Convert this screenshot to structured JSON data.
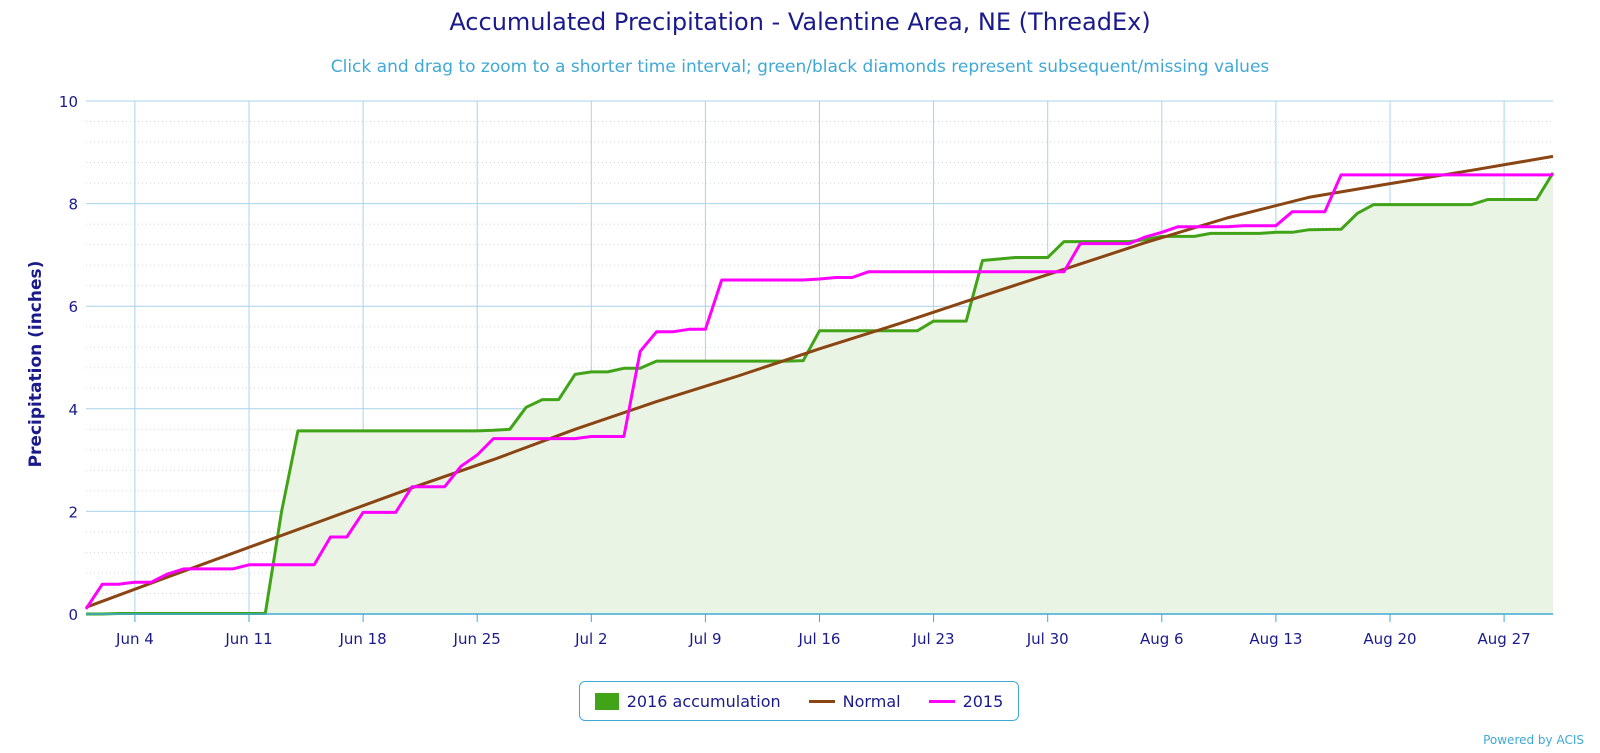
{
  "chart_data": {
    "type": "line",
    "title": "Accumulated Precipitation - Valentine Area, NE (ThreadEx)",
    "subtitle": "Click and drag to zoom to a shorter time interval; green/black diamonds represent subsequent/missing values",
    "ylabel": "Precipitation (inches)",
    "xlabel": "",
    "ylim": [
      0,
      10
    ],
    "y_ticks": [
      0,
      2,
      4,
      6,
      8,
      10
    ],
    "x_range_days": [
      0,
      90
    ],
    "x_ticks": [
      {
        "day": 3,
        "label": "Jun 4"
      },
      {
        "day": 10,
        "label": "Jun 11"
      },
      {
        "day": 17,
        "label": "Jun 18"
      },
      {
        "day": 24,
        "label": "Jun 25"
      },
      {
        "day": 31,
        "label": "Jul 2"
      },
      {
        "day": 38,
        "label": "Jul 9"
      },
      {
        "day": 45,
        "label": "Jul 16"
      },
      {
        "day": 52,
        "label": "Jul 23"
      },
      {
        "day": 59,
        "label": "Jul 30"
      },
      {
        "day": 66,
        "label": "Aug 6"
      },
      {
        "day": 73,
        "label": "Aug 13"
      },
      {
        "day": 80,
        "label": "Aug 20"
      },
      {
        "day": 87,
        "label": "Aug 27"
      }
    ],
    "grid": true,
    "legend_position": "bottom-center",
    "series": [
      {
        "name": "2016 accumulation",
        "kind": "area",
        "color": "#41a317",
        "fill": "#eaf4e4",
        "points": [
          [
            0,
            0
          ],
          [
            1,
            0
          ],
          [
            2,
            0.01
          ],
          [
            10,
            0.01
          ],
          [
            11,
            0.01
          ],
          [
            12,
            2.0
          ],
          [
            13,
            3.57
          ],
          [
            24,
            3.57
          ],
          [
            25,
            3.58
          ],
          [
            26,
            3.6
          ],
          [
            27,
            4.03
          ],
          [
            28,
            4.18
          ],
          [
            29,
            4.18
          ],
          [
            30,
            4.67
          ],
          [
            31,
            4.72
          ],
          [
            32,
            4.72
          ],
          [
            33,
            4.79
          ],
          [
            34,
            4.79
          ],
          [
            35,
            4.93
          ],
          [
            43,
            4.93
          ],
          [
            44,
            4.94
          ],
          [
            45,
            5.52
          ],
          [
            50,
            5.52
          ],
          [
            51,
            5.52
          ],
          [
            52,
            5.71
          ],
          [
            54,
            5.71
          ],
          [
            55,
            6.89
          ],
          [
            56,
            6.92
          ],
          [
            57,
            6.95
          ],
          [
            59,
            6.95
          ],
          [
            60,
            7.26
          ],
          [
            64,
            7.26
          ],
          [
            65,
            7.3
          ],
          [
            66,
            7.36
          ],
          [
            68,
            7.36
          ],
          [
            69,
            7.42
          ],
          [
            72,
            7.42
          ],
          [
            73,
            7.44
          ],
          [
            74,
            7.44
          ],
          [
            75,
            7.49
          ],
          [
            77,
            7.5
          ],
          [
            78,
            7.81
          ],
          [
            79,
            7.98
          ],
          [
            85,
            7.98
          ],
          [
            86,
            8.08
          ],
          [
            89,
            8.08
          ],
          [
            90,
            8.6
          ]
        ]
      },
      {
        "name": "Normal",
        "kind": "line",
        "color": "#8b4513",
        "points": [
          [
            0,
            0.13
          ],
          [
            5,
            0.72
          ],
          [
            10,
            1.3
          ],
          [
            15,
            1.88
          ],
          [
            20,
            2.46
          ],
          [
            25,
            3.01
          ],
          [
            30,
            3.6
          ],
          [
            35,
            4.14
          ],
          [
            40,
            4.64
          ],
          [
            45,
            5.17
          ],
          [
            50,
            5.67
          ],
          [
            55,
            6.2
          ],
          [
            60,
            6.72
          ],
          [
            65,
            7.24
          ],
          [
            70,
            7.72
          ],
          [
            75,
            8.12
          ],
          [
            80,
            8.39
          ],
          [
            85,
            8.65
          ],
          [
            90,
            8.92
          ]
        ]
      },
      {
        "name": "2015",
        "kind": "line",
        "color": "#ff00ff",
        "points": [
          [
            0,
            0.1
          ],
          [
            1,
            0.58
          ],
          [
            2,
            0.58
          ],
          [
            3,
            0.62
          ],
          [
            4,
            0.62
          ],
          [
            5,
            0.78
          ],
          [
            6,
            0.88
          ],
          [
            9,
            0.88
          ],
          [
            10,
            0.96
          ],
          [
            14,
            0.96
          ],
          [
            15,
            1.5
          ],
          [
            16,
            1.5
          ],
          [
            17,
            1.98
          ],
          [
            19,
            1.98
          ],
          [
            20,
            2.48
          ],
          [
            22,
            2.48
          ],
          [
            23,
            2.88
          ],
          [
            24,
            3.1
          ],
          [
            25,
            3.42
          ],
          [
            30,
            3.42
          ],
          [
            31,
            3.46
          ],
          [
            33,
            3.46
          ],
          [
            34,
            5.12
          ],
          [
            35,
            5.5
          ],
          [
            36,
            5.5
          ],
          [
            37,
            5.55
          ],
          [
            38,
            5.55
          ],
          [
            39,
            6.51
          ],
          [
            44,
            6.51
          ],
          [
            45,
            6.53
          ],
          [
            46,
            6.56
          ],
          [
            47,
            6.56
          ],
          [
            48,
            6.67
          ],
          [
            59,
            6.67
          ],
          [
            60,
            6.67
          ],
          [
            61,
            7.22
          ],
          [
            64,
            7.22
          ],
          [
            65,
            7.35
          ],
          [
            66,
            7.44
          ],
          [
            67,
            7.55
          ],
          [
            70,
            7.55
          ],
          [
            71,
            7.57
          ],
          [
            73,
            7.57
          ],
          [
            74,
            7.84
          ],
          [
            76,
            7.84
          ],
          [
            77,
            8.56
          ],
          [
            90,
            8.56
          ]
        ]
      }
    ]
  },
  "credits": "Powered by ACIS"
}
